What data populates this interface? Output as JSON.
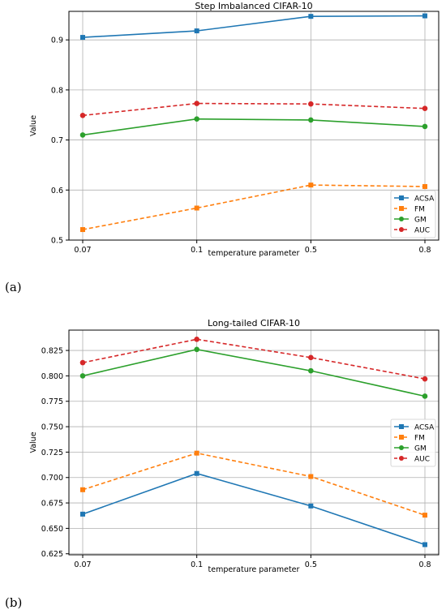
{
  "panels": [
    {
      "label": "(a)"
    },
    {
      "label": "(b)"
    }
  ],
  "chart_data": [
    {
      "type": "line",
      "title": "Step Imbalanced CIFAR-10",
      "xlabel": "temperature parameter",
      "ylabel": "Value",
      "categories": [
        "0.07",
        "0.1",
        "0.5",
        "0.8"
      ],
      "ylim": [
        0.5,
        0.957
      ],
      "yticks": [
        "0.5",
        "0.6",
        "0.7",
        "0.8",
        "0.9"
      ],
      "legend_position": "lower right",
      "grid": true,
      "series": [
        {
          "name": "ACSA",
          "color": "#1f77b4",
          "marker": "square",
          "dash": false,
          "values": [
            0.905,
            0.918,
            0.947,
            0.948
          ]
        },
        {
          "name": "FM",
          "color": "#ff7f0e",
          "marker": "square",
          "dash": true,
          "values": [
            0.521,
            0.564,
            0.61,
            0.607
          ]
        },
        {
          "name": "GM",
          "color": "#2ca02c",
          "marker": "circle",
          "dash": false,
          "values": [
            0.71,
            0.742,
            0.74,
            0.727
          ]
        },
        {
          "name": "AUC",
          "color": "#d62728",
          "marker": "circle",
          "dash": true,
          "values": [
            0.749,
            0.773,
            0.772,
            0.763
          ]
        }
      ]
    },
    {
      "type": "line",
      "title": "Long-tailed CIFAR-10",
      "xlabel": "temperature parameter",
      "ylabel": "Value",
      "categories": [
        "0.07",
        "0.1",
        "0.5",
        "0.8"
      ],
      "ylim": [
        0.624,
        0.845
      ],
      "yticks": [
        "0.625",
        "0.650",
        "0.675",
        "0.700",
        "0.725",
        "0.750",
        "0.775",
        "0.800",
        "0.825"
      ],
      "legend_position": "center right",
      "grid": true,
      "series": [
        {
          "name": "ACSA",
          "color": "#1f77b4",
          "marker": "square",
          "dash": false,
          "values": [
            0.664,
            0.704,
            0.672,
            0.634
          ]
        },
        {
          "name": "FM",
          "color": "#ff7f0e",
          "marker": "square",
          "dash": true,
          "values": [
            0.688,
            0.724,
            0.701,
            0.663
          ]
        },
        {
          "name": "GM",
          "color": "#2ca02c",
          "marker": "circle",
          "dash": false,
          "values": [
            0.8,
            0.826,
            0.805,
            0.78
          ]
        },
        {
          "name": "AUC",
          "color": "#d62728",
          "marker": "circle",
          "dash": true,
          "values": [
            0.813,
            0.836,
            0.818,
            0.797
          ]
        }
      ]
    }
  ]
}
